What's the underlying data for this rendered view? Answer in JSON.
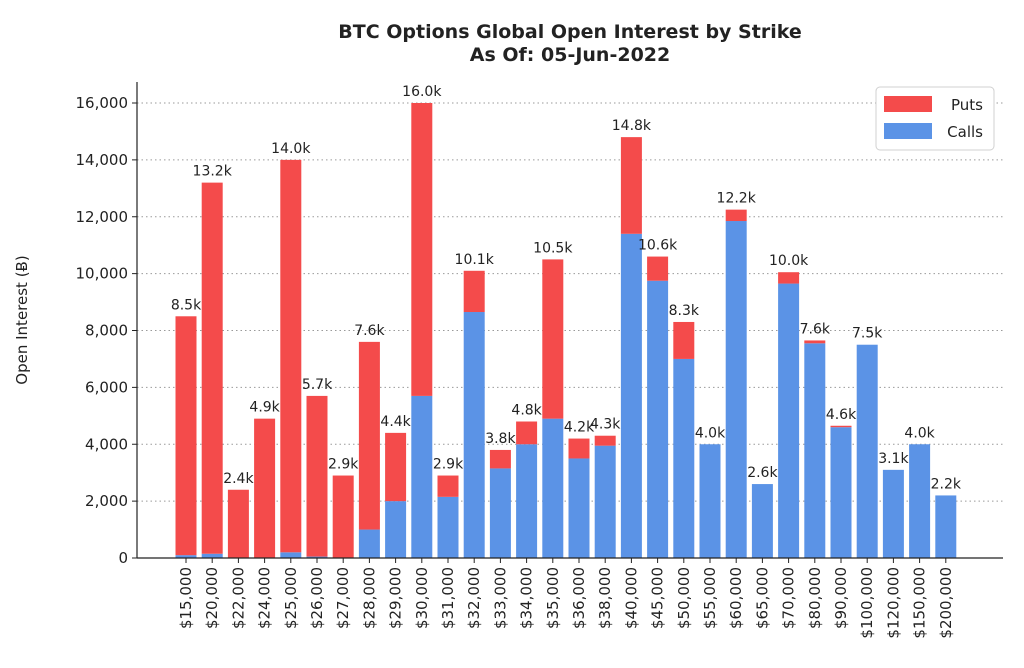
{
  "chart_data": {
    "type": "bar",
    "stacked": true,
    "title": "BTC Options Global Open Interest by Strike",
    "subtitle": "As Of: 05-Jun-2022",
    "ylabel": "Open Interest (Ƀ)",
    "xlabel": "",
    "ylim": [
      0,
      16500
    ],
    "yticks": [
      0,
      2000,
      4000,
      6000,
      8000,
      10000,
      12000,
      14000,
      16000
    ],
    "ytick_labels": [
      "0",
      "2,000",
      "4,000",
      "6,000",
      "8,000",
      "10,000",
      "12,000",
      "14,000",
      "16,000"
    ],
    "grid": "horizontal dotted",
    "legend_position": "top-right",
    "categories": [
      "$15,000",
      "$20,000",
      "$22,000",
      "$24,000",
      "$25,000",
      "$26,000",
      "$27,000",
      "$28,000",
      "$29,000",
      "$30,000",
      "$31,000",
      "$32,000",
      "$33,000",
      "$34,000",
      "$35,000",
      "$36,000",
      "$38,000",
      "$40,000",
      "$45,000",
      "$50,000",
      "$55,000",
      "$60,000",
      "$65,000",
      "$70,000",
      "$80,000",
      "$90,000",
      "$100,000",
      "$120,000",
      "$150,000",
      "$200,000"
    ],
    "series": [
      {
        "name": "Puts",
        "color": "#f44b4b",
        "values": [
          8400,
          13050,
          2400,
          4900,
          13800,
          5650,
          2900,
          6600,
          2400,
          10300,
          750,
          1450,
          650,
          800,
          5600,
          700,
          350,
          3400,
          850,
          1300,
          0,
          400,
          0,
          400,
          100,
          50,
          0,
          0,
          0,
          0
        ]
      },
      {
        "name": "Calls",
        "color": "#5b93e6",
        "values": [
          100,
          150,
          0,
          0,
          200,
          50,
          0,
          1000,
          2000,
          5700,
          2150,
          8650,
          3150,
          4000,
          4900,
          3500,
          3950,
          11400,
          9750,
          7000,
          4000,
          11850,
          2600,
          9650,
          7550,
          4600,
          7500,
          3100,
          4000,
          2200
        ]
      }
    ],
    "data_labels": [
      "8.5k",
      "13.2k",
      "2.4k",
      "4.9k",
      "14.0k",
      "5.7k",
      "2.9k",
      "7.6k",
      "4.4k",
      "16.0k",
      "2.9k",
      "10.1k",
      "3.8k",
      "4.8k",
      "10.5k",
      "4.2k",
      "4.3k",
      "14.8k",
      "10.6k",
      "8.3k",
      "4.0k",
      "12.2k",
      "2.6k",
      "10.0k",
      "7.6k",
      "4.6k",
      "7.5k",
      "3.1k",
      "4.0k",
      "2.2k"
    ]
  }
}
